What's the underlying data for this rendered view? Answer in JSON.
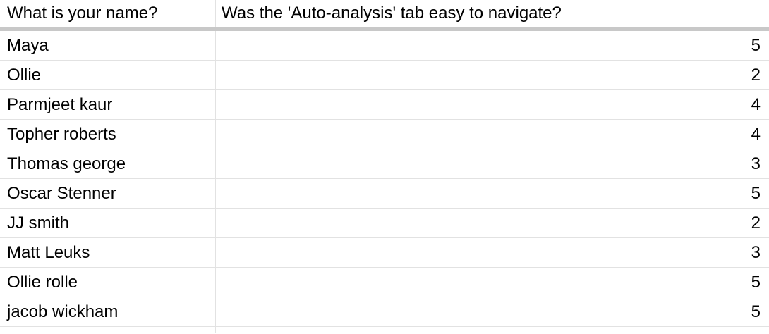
{
  "table": {
    "columns": [
      "What is your name?",
      "Was the 'Auto-analysis' tab easy to navigate?"
    ],
    "rows": [
      {
        "name": "Maya",
        "rating": "5"
      },
      {
        "name": "Ollie",
        "rating": "2"
      },
      {
        "name": "Parmjeet kaur",
        "rating": "4"
      },
      {
        "name": "Topher roberts",
        "rating": "4"
      },
      {
        "name": "Thomas george",
        "rating": "3"
      },
      {
        "name": "Oscar Stenner",
        "rating": "5"
      },
      {
        "name": "JJ smith",
        "rating": "2"
      },
      {
        "name": "Matt Leuks",
        "rating": "3"
      },
      {
        "name": "Ollie rolle",
        "rating": "5"
      },
      {
        "name": "jacob wickham",
        "rating": "5"
      }
    ]
  }
}
